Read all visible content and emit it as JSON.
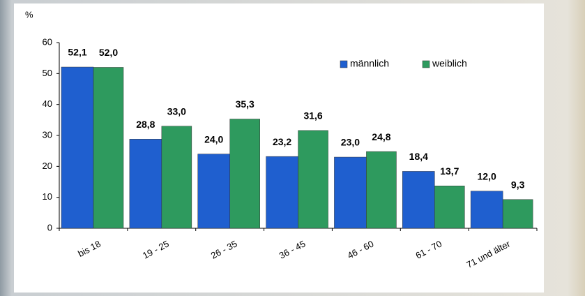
{
  "chart_data": {
    "type": "bar",
    "y_label": "%",
    "categories": [
      "bis 18",
      "19 - 25",
      "26 - 35",
      "36 - 45",
      "46 - 60",
      "61 - 70",
      "71 und älter"
    ],
    "series": [
      {
        "name": "männlich",
        "color": "#1f5fcf",
        "values": [
          52.1,
          28.8,
          24.0,
          23.2,
          23.0,
          18.4,
          12.0
        ],
        "value_labels": [
          "52,1",
          "28,8",
          "24,0",
          "23,2",
          "23,0",
          "18,4",
          "12,0"
        ]
      },
      {
        "name": "weiblich",
        "color": "#2e9a5e",
        "values": [
          52.0,
          33.0,
          35.3,
          31.6,
          24.8,
          13.7,
          9.3
        ],
        "value_labels": [
          "52,0",
          "33,0",
          "35,3",
          "31,6",
          "24,8",
          "13,7",
          "9,3"
        ]
      }
    ],
    "ylim": [
      0,
      60
    ],
    "yticks": [
      0,
      10,
      20,
      30,
      40,
      50,
      60
    ],
    "grid": false,
    "legend": "top-right"
  }
}
